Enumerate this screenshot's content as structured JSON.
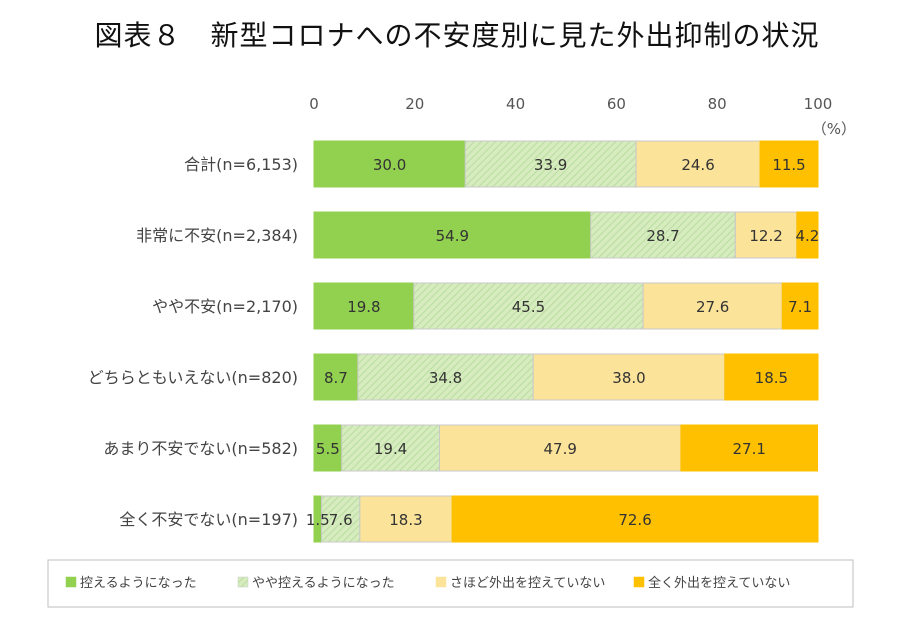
{
  "title": "図表８　新型コロナへの不安度別に見た外出抑制の状況",
  "colors": {
    "series": [
      "#92d050",
      "#d6ecbe",
      "#fbe39a",
      "#ffc000"
    ],
    "hatch": "#b9dca0",
    "stroke_light": "#c9c9c9",
    "frame": "#bfbfbf"
  },
  "chart_data": {
    "type": "bar",
    "orientation": "horizontal",
    "stacked": true,
    "xlim": [
      0,
      100
    ],
    "xticks": [
      0,
      20,
      40,
      60,
      80,
      100
    ],
    "unit_label": "（%）",
    "categories": [
      "合計(n=6,153)",
      "非常に不安(n=2,384)",
      "やや不安(n=2,170)",
      "どちらともいえない(n=820)",
      "あまり不安でない(n=582)",
      "全く不安でない(n=197)"
    ],
    "series": [
      {
        "name": "控えるようになった",
        "values": [
          30.0,
          54.9,
          19.8,
          8.7,
          5.5,
          1.5
        ]
      },
      {
        "name": "やや控えるようになった",
        "values": [
          33.9,
          28.7,
          45.5,
          34.8,
          19.4,
          7.6
        ]
      },
      {
        "name": "さほど外出を控えていない",
        "values": [
          24.6,
          12.2,
          27.6,
          38.0,
          47.9,
          18.3
        ]
      },
      {
        "name": "全く外出を控えていない",
        "values": [
          11.5,
          4.2,
          7.1,
          18.5,
          27.1,
          72.6
        ]
      }
    ],
    "legend_position": "bottom",
    "grid": false
  }
}
